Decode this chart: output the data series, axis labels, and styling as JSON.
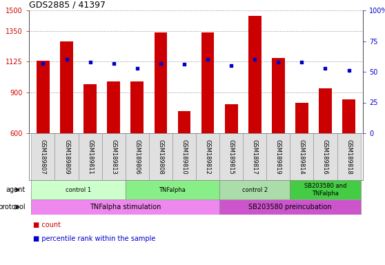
{
  "title": "GDS2885 / 41397",
  "samples": [
    "GSM189807",
    "GSM189809",
    "GSM189811",
    "GSM189813",
    "GSM189806",
    "GSM189808",
    "GSM189810",
    "GSM189812",
    "GSM189815",
    "GSM189817",
    "GSM189819",
    "GSM189814",
    "GSM189816",
    "GSM189818"
  ],
  "counts": [
    1130,
    1270,
    960,
    980,
    980,
    1340,
    760,
    1340,
    810,
    1460,
    1150,
    820,
    930,
    850
  ],
  "percentiles": [
    57,
    60,
    58,
    57,
    53,
    57,
    56,
    60,
    55,
    60,
    58,
    58,
    53,
    51
  ],
  "ylim_left": [
    600,
    1500
  ],
  "ylim_right": [
    0,
    100
  ],
  "yticks_left": [
    600,
    900,
    1125,
    1350,
    1500
  ],
  "yticks_right": [
    0,
    25,
    50,
    75,
    100
  ],
  "bar_color": "#cc0000",
  "dot_color": "#0000cc",
  "agent_groups": [
    {
      "label": "control 1",
      "start": 0,
      "end": 3,
      "color": "#ccffcc"
    },
    {
      "label": "TNFalpha",
      "start": 4,
      "end": 7,
      "color": "#88ee88"
    },
    {
      "label": "control 2",
      "start": 8,
      "end": 10,
      "color": "#aaddaa"
    },
    {
      "label": "SB203580 and\nTNFalpha",
      "start": 11,
      "end": 13,
      "color": "#44cc44"
    }
  ],
  "protocol_groups": [
    {
      "label": "TNFalpha stimulation",
      "start": 0,
      "end": 7,
      "color": "#ee88ee"
    },
    {
      "label": "SB203580 preincubation",
      "start": 8,
      "end": 13,
      "color": "#cc55cc"
    }
  ],
  "legend_count_color": "#cc0000",
  "legend_dot_color": "#0000cc",
  "bg_color": "#ffffff",
  "grid_color": "#888888"
}
